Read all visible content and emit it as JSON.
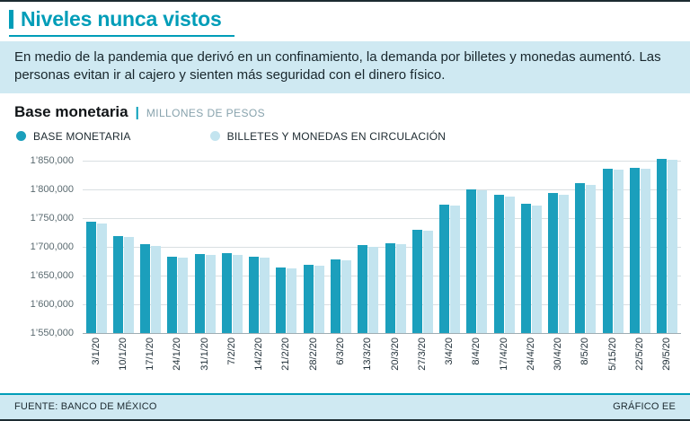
{
  "accent_color": "#009db8",
  "band_color": "#cfe9f2",
  "header": {
    "title": "Niveles nunca vistos"
  },
  "intro": {
    "text": "En medio de la pandemia que derivó en un confinamiento, la demanda por billetes y monedas aumentó. Las personas evitan ir al cajero y sienten más seguridad con el dinero físico."
  },
  "chart_header": {
    "title": "Base monetaria",
    "separator": "|",
    "units": "MILLONES DE PESOS"
  },
  "legend": [
    {
      "label": "BASE MONETARIA",
      "color": "#1b9fbc"
    },
    {
      "label": "BILLETES Y MONEDAS EN CIRCULACIÓN",
      "color": "#c3e4ef"
    }
  ],
  "footer": {
    "source": "FUENTE: BANCO DE MÉXICO",
    "credit": "GRÁFICO EE"
  },
  "chart_data": {
    "type": "bar",
    "title": "Base monetaria",
    "ylabel": "Millones de pesos",
    "ylim": [
      1550000,
      1860000
    ],
    "grid": true,
    "legend_position": "top",
    "yticks": [
      "1’850,000",
      "1’800,000",
      "1’750,000",
      "1’700,000",
      "1’650,000",
      "1’600,000",
      "1’550,000"
    ],
    "ytick_values": [
      1850000,
      1800000,
      1750000,
      1700000,
      1650000,
      1600000,
      1550000
    ],
    "categories": [
      "3/1/20",
      "10/1/20",
      "17/1/20",
      "24/1/20",
      "31/1/20",
      "7/2/20",
      "14/2/20",
      "21/2/20",
      "28/2/20",
      "6/3/20",
      "13/3/20",
      "20/3/20",
      "27/3/20",
      "3/4/20",
      "8/4/20",
      "17/4/20",
      "24/4/20",
      "30/4/20",
      "8/5/20",
      "5/15/20",
      "22/5/20",
      "29/5/20"
    ],
    "series": [
      {
        "name": "BASE MONETARIA",
        "color": "#1b9fbc",
        "values": [
          1744000,
          1719000,
          1704000,
          1683000,
          1687000,
          1688000,
          1683000,
          1664000,
          1669000,
          1678000,
          1702000,
          1706000,
          1730000,
          1773000,
          1800000,
          1790000,
          1774000,
          1793000,
          1810000,
          1836000,
          1838000,
          1853000
        ]
      },
      {
        "name": "BILLETES Y MONEDAS EN CIRCULACIÓN",
        "color": "#c3e4ef",
        "values": [
          1741000,
          1716000,
          1701000,
          1681000,
          1685000,
          1686000,
          1681000,
          1662000,
          1667000,
          1676000,
          1700000,
          1704000,
          1728000,
          1771000,
          1798000,
          1788000,
          1772000,
          1791000,
          1808000,
          1834000,
          1836000,
          1851000
        ]
      }
    ]
  }
}
